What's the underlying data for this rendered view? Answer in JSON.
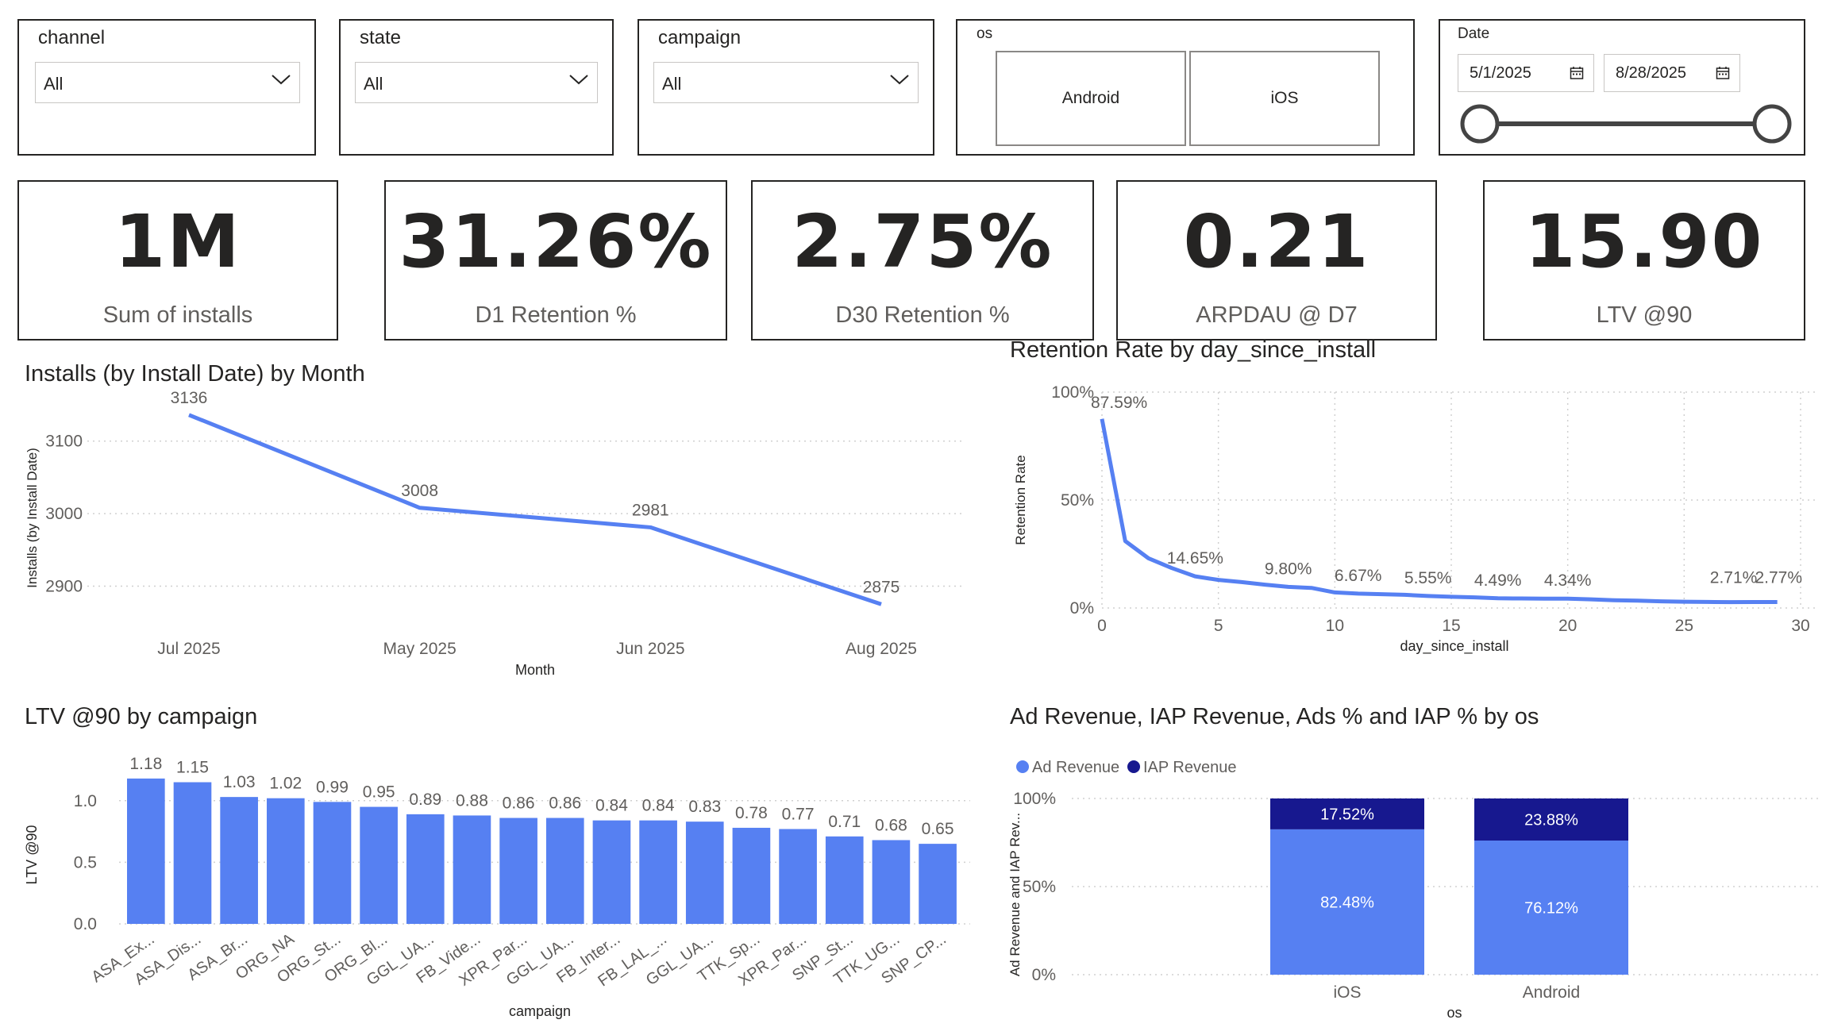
{
  "slicers": {
    "channel": {
      "title": "channel",
      "value": "All"
    },
    "state": {
      "title": "state",
      "value": "All"
    },
    "campaign": {
      "title": "campaign",
      "value": "All"
    },
    "os": {
      "title": "os",
      "options": [
        "Android",
        "iOS"
      ]
    },
    "date": {
      "title": "Date",
      "start": "5/1/2025",
      "end": "8/28/2025"
    }
  },
  "kpis": [
    {
      "value": "1M",
      "label": "Sum of installs"
    },
    {
      "value": "31.26%",
      "label": "D1 Retention %"
    },
    {
      "value": "2.75%",
      "label": "D30 Retention %"
    },
    {
      "value": "0.21",
      "label": "ARPDAU @ D7"
    },
    {
      "value": "15.90",
      "label": "LTV @90"
    }
  ],
  "colors": {
    "primary": "#5680F2",
    "secondary": "#17188F",
    "grid": "#d0d0d0"
  },
  "chart_data": [
    {
      "type": "line",
      "title": "Installs (by Install Date) by Month",
      "xlabel": "Month",
      "ylabel": "Installs (by Install Date)",
      "categories": [
        "Jul 2025",
        "May 2025",
        "Jun 2025",
        "Aug 2025"
      ],
      "values": [
        3136,
        3008,
        2981,
        2875
      ],
      "data_labels": [
        "3136",
        "3008",
        "2981",
        "2875"
      ],
      "yticks": [
        "2900",
        "3000",
        "3100"
      ],
      "ylim": [
        2860,
        3150
      ],
      "grid": true
    },
    {
      "type": "line",
      "title": "Retention Rate by day_since_install",
      "xlabel": "day_since_install",
      "ylabel": "Retention Rate",
      "x": [
        0,
        1,
        2,
        3,
        4,
        5,
        6,
        7,
        8,
        9,
        10,
        11,
        12,
        13,
        14,
        15,
        16,
        17,
        18,
        19,
        20,
        21,
        22,
        23,
        24,
        25,
        26,
        27,
        28,
        29
      ],
      "values": [
        87.59,
        31,
        23,
        18.5,
        14.65,
        13,
        12,
        10.8,
        9.8,
        9.3,
        7.2,
        6.67,
        6.4,
        6.1,
        5.55,
        5.2,
        4.9,
        4.49,
        4.4,
        4.34,
        4.34,
        4.0,
        3.6,
        3.4,
        3.1,
        2.9,
        2.8,
        2.71,
        2.74,
        2.77
      ],
      "data_labels": [
        {
          "x": 0,
          "text": "87.59%"
        },
        {
          "x": 4,
          "text": "14.65%"
        },
        {
          "x": 8,
          "text": "9.80%"
        },
        {
          "x": 11,
          "text": "6.67%"
        },
        {
          "x": 14,
          "text": "5.55%"
        },
        {
          "x": 17,
          "text": "4.49%"
        },
        {
          "x": 20,
          "text": "4.34%"
        },
        {
          "x": 27,
          "text": "2.71%"
        },
        {
          "x": 29,
          "text": "2.77%"
        }
      ],
      "yticks": [
        "0%",
        "50%",
        "100%"
      ],
      "xticks": [
        "0",
        "5",
        "10",
        "15",
        "20",
        "25",
        "30"
      ],
      "xlim": [
        0,
        30
      ],
      "ylim": [
        0,
        100
      ],
      "grid": true
    },
    {
      "type": "bar",
      "title": "LTV @90 by campaign",
      "xlabel": "campaign",
      "ylabel": "LTV @90",
      "categories": [
        "ASA_Ex...",
        "ASA_Dis...",
        "ASA_Br...",
        "ORG_NA",
        "ORG_St...",
        "ORG_Bl...",
        "GGL_UA...",
        "FB_Vide...",
        "XPR_Par...",
        "GGL_UA...",
        "FB_Inter...",
        "FB_LAL_...",
        "GGL_UA...",
        "TTK_Sp...",
        "XPR_Par...",
        "SNP_St...",
        "TTK_UG...",
        "SNP_CP..."
      ],
      "values": [
        1.18,
        1.15,
        1.03,
        1.02,
        0.99,
        0.95,
        0.89,
        0.88,
        0.86,
        0.86,
        0.84,
        0.84,
        0.83,
        0.78,
        0.77,
        0.71,
        0.68,
        0.65
      ],
      "data_labels": [
        "1.18",
        "1.15",
        "1.03",
        "1.02",
        "0.99",
        "0.95",
        "0.89",
        "0.88",
        "0.86",
        "0.86",
        "0.84",
        "0.84",
        "0.83",
        "0.78",
        "0.77",
        "0.71",
        "0.68",
        "0.65"
      ],
      "yticks": [
        "0.0",
        "0.5",
        "1.0"
      ],
      "ylim": [
        0,
        1.25
      ],
      "grid": true
    },
    {
      "type": "bar",
      "stacked": "100%",
      "title": "Ad Revenue, IAP Revenue, Ads % and IAP % by os",
      "xlabel": "os",
      "ylabel": "Ad Revenue and IAP Rev...",
      "categories": [
        "iOS",
        "Android"
      ],
      "series": [
        {
          "name": "Ad Revenue",
          "values": [
            82.48,
            76.12
          ],
          "labels": [
            "82.48%",
            "76.12%"
          ]
        },
        {
          "name": "IAP Revenue",
          "values": [
            17.52,
            23.88
          ],
          "labels": [
            "17.52%",
            "23.88%"
          ]
        }
      ],
      "yticks": [
        "0%",
        "50%",
        "100%"
      ],
      "ylim": [
        0,
        100
      ],
      "legend": "top-left",
      "grid": true
    }
  ]
}
